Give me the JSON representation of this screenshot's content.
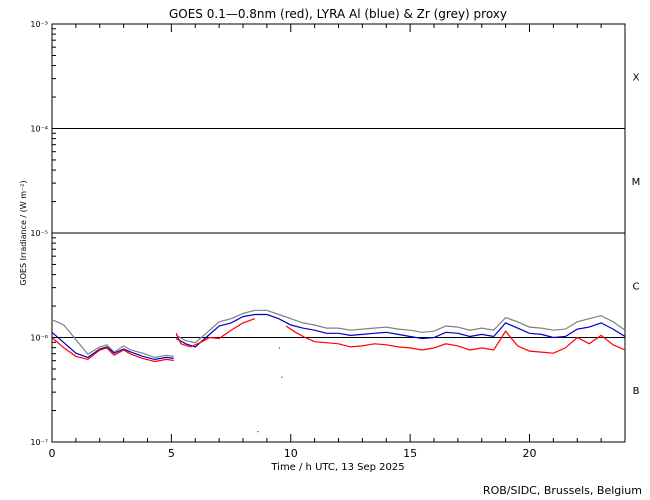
{
  "chart_data": {
    "type": "line",
    "title": "GOES 0.1—0.8nm (red), LYRA Al (blue) & Zr (grey) proxy",
    "xlabel": "Time / h UTC, 13 Sep 2025",
    "ylabel": "GOES Irradiance / (W m⁻²)",
    "credit": "ROB/SIDC, Brussels, Belgium",
    "xlim": [
      0,
      24
    ],
    "ylim_log10": [
      -7,
      -3
    ],
    "y_scale": "log",
    "x_ticks": [
      0,
      5,
      10,
      15,
      20
    ],
    "y_ticks": [
      {
        "exp": -7,
        "label": "10⁻⁷"
      },
      {
        "exp": -6,
        "label": "10⁻⁶"
      },
      {
        "exp": -5,
        "label": "10⁻⁵"
      },
      {
        "exp": -4,
        "label": "10⁻⁴"
      },
      {
        "exp": -3,
        "label": "10⁻³"
      }
    ],
    "class_lines": [
      -6,
      -5,
      -4
    ],
    "classes": [
      {
        "label": "B",
        "exp": -6.5
      },
      {
        "label": "C",
        "exp": -5.5
      },
      {
        "label": "M",
        "exp": -4.5
      },
      {
        "label": "X",
        "exp": -3.5
      }
    ],
    "series": [
      {
        "color": "#808080",
        "segments": [
          [
            [
              0,
              -5.83
            ],
            [
              0.5,
              -5.88
            ],
            [
              1,
              -6.02
            ],
            [
              1.5,
              -6.16
            ],
            [
              2,
              -6.09
            ],
            [
              2.3,
              -6.07
            ],
            [
              2.6,
              -6.14
            ],
            [
              3.0,
              -6.08
            ],
            [
              3.3,
              -6.12
            ],
            [
              3.8,
              -6.15
            ],
            [
              4.3,
              -6.19
            ],
            [
              4.8,
              -6.17
            ],
            [
              5.1,
              -6.18
            ]
          ],
          [
            [
              5.2,
              -5.98
            ],
            [
              5.6,
              -6.03
            ],
            [
              6,
              -6.05
            ],
            [
              6.5,
              -5.95
            ],
            [
              7,
              -5.85
            ],
            [
              7.5,
              -5.82
            ],
            [
              8,
              -5.77
            ],
            [
              8.5,
              -5.74
            ],
            [
              9,
              -5.74
            ],
            [
              9.5,
              -5.78
            ],
            [
              10,
              -5.82
            ],
            [
              10.5,
              -5.86
            ],
            [
              11,
              -5.88
            ],
            [
              11.5,
              -5.91
            ],
            [
              12,
              -5.91
            ],
            [
              12.5,
              -5.93
            ],
            [
              13,
              -5.92
            ],
            [
              13.5,
              -5.91
            ],
            [
              14,
              -5.9
            ],
            [
              14.5,
              -5.92
            ],
            [
              15,
              -5.93
            ],
            [
              15.5,
              -5.95
            ],
            [
              16,
              -5.94
            ],
            [
              16.5,
              -5.89
            ],
            [
              17,
              -5.9
            ],
            [
              17.5,
              -5.93
            ],
            [
              18,
              -5.91
            ],
            [
              18.5,
              -5.93
            ],
            [
              19,
              -5.81
            ],
            [
              19.5,
              -5.85
            ],
            [
              20,
              -5.9
            ],
            [
              20.5,
              -5.91
            ],
            [
              21,
              -5.93
            ],
            [
              21.5,
              -5.92
            ],
            [
              22,
              -5.85
            ],
            [
              22.5,
              -5.82
            ],
            [
              23,
              -5.79
            ],
            [
              23.5,
              -5.85
            ],
            [
              24,
              -5.93
            ]
          ]
        ]
      },
      {
        "color": "#0000cc",
        "segments": [
          [
            [
              0,
              -5.95
            ],
            [
              0.5,
              -6.05
            ],
            [
              1,
              -6.15
            ],
            [
              1.5,
              -6.19
            ],
            [
              2,
              -6.11
            ],
            [
              2.3,
              -6.09
            ],
            [
              2.6,
              -6.15
            ],
            [
              3.0,
              -6.11
            ],
            [
              3.3,
              -6.14
            ],
            [
              3.8,
              -6.18
            ],
            [
              4.3,
              -6.21
            ],
            [
              4.8,
              -6.19
            ],
            [
              5.1,
              -6.2
            ]
          ],
          [
            [
              5.2,
              -6.01
            ],
            [
              5.6,
              -6.06
            ],
            [
              6,
              -6.09
            ],
            [
              6.5,
              -5.99
            ],
            [
              7,
              -5.89
            ],
            [
              7.5,
              -5.86
            ],
            [
              8,
              -5.8
            ],
            [
              8.5,
              -5.78
            ],
            [
              9,
              -5.78
            ],
            [
              9.5,
              -5.82
            ],
            [
              10,
              -5.88
            ],
            [
              10.5,
              -5.91
            ],
            [
              11,
              -5.93
            ],
            [
              11.5,
              -5.96
            ],
            [
              12,
              -5.96
            ],
            [
              12.5,
              -5.98
            ],
            [
              13,
              -5.97
            ],
            [
              13.5,
              -5.96
            ],
            [
              14,
              -5.95
            ],
            [
              14.5,
              -5.97
            ],
            [
              15,
              -5.99
            ],
            [
              15.5,
              -6.01
            ],
            [
              16,
              -6.0
            ],
            [
              16.5,
              -5.95
            ],
            [
              17,
              -5.96
            ],
            [
              17.5,
              -5.99
            ],
            [
              18,
              -5.97
            ],
            [
              18.5,
              -5.99
            ],
            [
              19,
              -5.86
            ],
            [
              19.5,
              -5.91
            ],
            [
              20,
              -5.96
            ],
            [
              20.5,
              -5.97
            ],
            [
              21,
              -6.0
            ],
            [
              21.5,
              -5.99
            ],
            [
              22,
              -5.92
            ],
            [
              22.5,
              -5.9
            ],
            [
              23,
              -5.86
            ],
            [
              23.5,
              -5.92
            ],
            [
              24,
              -5.99
            ]
          ]
        ]
      },
      {
        "color": "#ff0000",
        "segments": [
          [
            [
              0,
              -6.0
            ],
            [
              0.5,
              -6.1
            ],
            [
              1,
              -6.18
            ],
            [
              1.5,
              -6.21
            ],
            [
              2,
              -6.12
            ],
            [
              2.3,
              -6.1
            ],
            [
              2.6,
              -6.17
            ],
            [
              3.0,
              -6.12
            ],
            [
              3.3,
              -6.16
            ],
            [
              3.8,
              -6.2
            ],
            [
              4.3,
              -6.23
            ],
            [
              4.8,
              -6.21
            ],
            [
              5.1,
              -6.22
            ]
          ],
          [
            [
              5.2,
              -5.96
            ],
            [
              5.4,
              -6.06
            ],
            [
              5.8,
              -6.09
            ],
            [
              6.2,
              -6.05
            ],
            [
              6.6,
              -6.0
            ],
            [
              7,
              -6.01
            ],
            [
              7.5,
              -5.93
            ],
            [
              8,
              -5.86
            ],
            [
              8.5,
              -5.82
            ]
          ],
          [
            [
              9.8,
              -5.89
            ],
            [
              10.2,
              -5.95
            ],
            [
              10.6,
              -6.0
            ],
            [
              11,
              -6.04
            ],
            [
              11.5,
              -6.05
            ],
            [
              12,
              -6.06
            ],
            [
              12.5,
              -6.09
            ],
            [
              13,
              -6.08
            ],
            [
              13.5,
              -6.06
            ],
            [
              14,
              -6.07
            ],
            [
              14.5,
              -6.09
            ],
            [
              15,
              -6.1
            ],
            [
              15.5,
              -6.12
            ],
            [
              16,
              -6.1
            ],
            [
              16.5,
              -6.06
            ],
            [
              17,
              -6.08
            ],
            [
              17.5,
              -6.12
            ],
            [
              18,
              -6.1
            ],
            [
              18.5,
              -6.12
            ],
            [
              19,
              -5.94
            ],
            [
              19.5,
              -6.08
            ],
            [
              20,
              -6.13
            ],
            [
              20.5,
              -6.14
            ],
            [
              21,
              -6.15
            ],
            [
              21.5,
              -6.1
            ],
            [
              22,
              -6.0
            ],
            [
              22.5,
              -6.06
            ],
            [
              23,
              -5.98
            ],
            [
              23.5,
              -6.07
            ],
            [
              24,
              -6.12
            ]
          ],
          [
            [
              8.6,
              -6.9
            ],
            [
              8.65,
              -6.9
            ]
          ],
          [
            [
              9.6,
              -6.38
            ],
            [
              9.65,
              -6.38
            ]
          ],
          [
            [
              9.5,
              -6.1
            ],
            [
              9.55,
              -6.1
            ]
          ]
        ]
      }
    ]
  }
}
